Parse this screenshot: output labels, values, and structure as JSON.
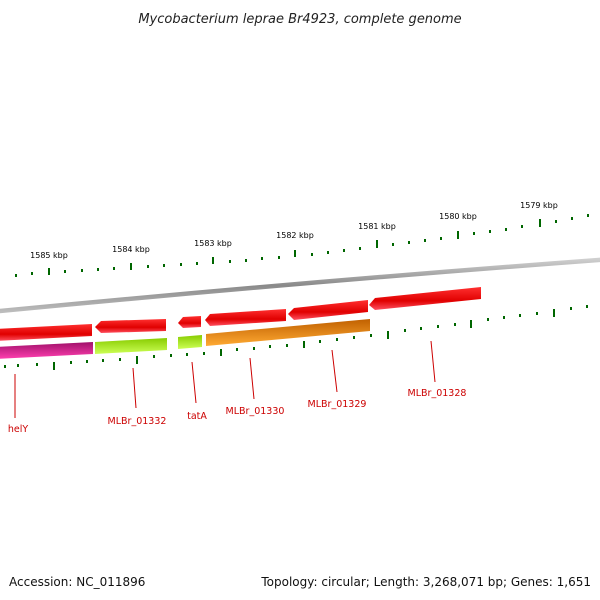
{
  "title": "Mycobacterium leprae Br4923, complete genome",
  "footer": {
    "accession": "Accession: NC_011896",
    "summary": "Topology: circular; Length: 3,268,071 bp; Genes: 1,651"
  },
  "kbp_labels": [
    "1585 kbp",
    "1584 kbp",
    "1583 kbp",
    "1582 kbp",
    "1581 kbp",
    "1580 kbp",
    "1579 kbp"
  ],
  "gene_labels": [
    "helY",
    "MLBr_01332",
    "tatA",
    "MLBr_01330",
    "MLBr_01329",
    "MLBr_01328"
  ],
  "colors": {
    "red_feature": "#ee0000",
    "magenta_feature": "#cc1188",
    "lime_feature": "#aaee22",
    "orange_feature": "#ff8800",
    "tick": "#006600",
    "backbone": "#888888",
    "label": "#cc0000"
  }
}
